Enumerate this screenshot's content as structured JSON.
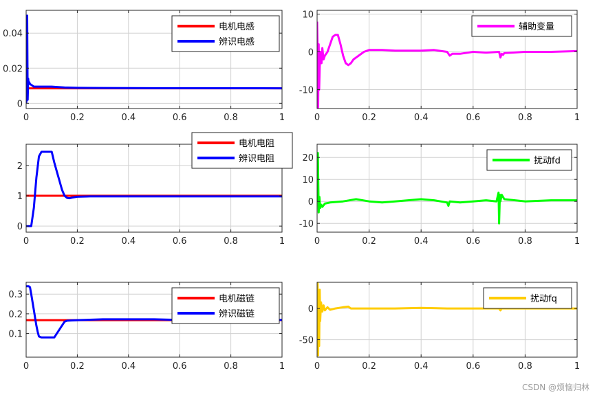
{
  "watermark": "CSDN @烦恼归林",
  "chart_data": [
    {
      "type": "line",
      "xlim": [
        0,
        1
      ],
      "ylim": [
        -0.003,
        0.053
      ],
      "xticks": [
        0,
        0.2,
        0.4,
        0.6,
        0.8,
        1
      ],
      "yticks": [
        0,
        0.02,
        0.04
      ],
      "xticklabels": [
        "0",
        "0.2",
        "0.4",
        "0.6",
        "0.8",
        "1"
      ],
      "yticklabels": [
        "0",
        "0.02",
        "0.04"
      ],
      "grid": true,
      "legend_position": "top-right",
      "series": [
        {
          "name": "电机电感",
          "color": "#ff0000",
          "x": [
            0,
            1
          ],
          "y": [
            0.0085,
            0.0085
          ]
        },
        {
          "name": "辨识电感",
          "color": "#0000ff",
          "x": [
            0,
            0.002,
            0.004,
            0.006,
            0.008,
            0.01,
            0.012,
            0.015,
            0.02,
            0.03,
            0.05,
            0.1,
            0.15,
            0.2,
            0.3,
            0.5,
            0.7,
            1
          ],
          "y": [
            0,
            0.002,
            0.05,
            0.002,
            0.014,
            0.011,
            0.012,
            0.011,
            0.0105,
            0.0095,
            0.0095,
            0.0095,
            0.009,
            0.0088,
            0.0087,
            0.0086,
            0.0086,
            0.0085
          ]
        }
      ]
    },
    {
      "type": "line",
      "xlim": [
        0,
        1
      ],
      "ylim": [
        -15,
        11
      ],
      "xticks": [
        0,
        0.2,
        0.4,
        0.6,
        0.8,
        1
      ],
      "yticks": [
        -10,
        0,
        10
      ],
      "xticklabels": [
        "0",
        "0.2",
        "0.4",
        "0.6",
        "0.8",
        "1"
      ],
      "yticklabels": [
        "-10",
        "0",
        "10"
      ],
      "grid": true,
      "legend_position": "top-right",
      "series": [
        {
          "name": "辅助变量",
          "color": "#ff00ff",
          "x": [
            0,
            0.002,
            0.004,
            0.006,
            0.008,
            0.01,
            0.013,
            0.017,
            0.02,
            0.025,
            0.03,
            0.04,
            0.05,
            0.06,
            0.07,
            0.08,
            0.09,
            0.1,
            0.11,
            0.12,
            0.13,
            0.14,
            0.16,
            0.18,
            0.2,
            0.25,
            0.3,
            0.4,
            0.45,
            0.5,
            0.51,
            0.52,
            0.55,
            0.6,
            0.65,
            0.7,
            0.705,
            0.71,
            0.715,
            0.72,
            0.75,
            0.8,
            0.9,
            1
          ],
          "y": [
            8,
            0,
            -15,
            2,
            -10,
            -4,
            0,
            -3,
            1,
            -2,
            -1,
            0,
            2,
            4,
            4.5,
            4.5,
            2,
            -1,
            -3,
            -3.5,
            -3,
            -2,
            -1,
            0,
            0.5,
            0.5,
            0.3,
            0.3,
            0.5,
            0,
            -1,
            -0.5,
            -0.5,
            0,
            -0.2,
            0,
            -1.5,
            -0.5,
            -0.8,
            -0.3,
            -0.2,
            0,
            0,
            0.2
          ]
        }
      ]
    },
    {
      "type": "line",
      "xlim": [
        0,
        1
      ],
      "ylim": [
        -0.2,
        2.7
      ],
      "xticks": [
        0,
        0.2,
        0.4,
        0.6,
        0.8,
        1
      ],
      "yticks": [
        0,
        1,
        2
      ],
      "xticklabels": [
        "0",
        "0.2",
        "0.4",
        "0.6",
        "0.8",
        "1"
      ],
      "yticklabels": [
        "0",
        "1",
        "2"
      ],
      "grid": true,
      "legend_position": "top-right",
      "series": [
        {
          "name": "电机电阻",
          "color": "#ff0000",
          "x": [
            0,
            1
          ],
          "y": [
            1,
            1
          ]
        },
        {
          "name": "辨识电阻",
          "color": "#0000ff",
          "x": [
            0,
            0.02,
            0.03,
            0.04,
            0.05,
            0.06,
            0.1,
            0.11,
            0.12,
            0.13,
            0.14,
            0.15,
            0.16,
            0.17,
            0.18,
            0.2,
            0.25,
            1
          ],
          "y": [
            0,
            0,
            0.6,
            1.6,
            2.3,
            2.45,
            2.45,
            2.1,
            1.8,
            1.5,
            1.2,
            1.0,
            0.93,
            0.92,
            0.94,
            0.97,
            0.98,
            0.98
          ]
        }
      ]
    },
    {
      "type": "line",
      "xlim": [
        0,
        1
      ],
      "ylim": [
        -14,
        26
      ],
      "xticks": [
        0,
        0.2,
        0.4,
        0.6,
        0.8,
        1
      ],
      "yticks": [
        -10,
        0,
        10,
        20
      ],
      "xticklabels": [
        "0",
        "0.2",
        "0.4",
        "0.6",
        "0.8",
        "1"
      ],
      "yticklabels": [
        "-10",
        "0",
        "10",
        "20"
      ],
      "grid": true,
      "legend_position": "top-right",
      "series": [
        {
          "name": "扰动fd",
          "color": "#00ff00",
          "x": [
            0,
            0.003,
            0.006,
            0.009,
            0.012,
            0.016,
            0.02,
            0.03,
            0.05,
            0.1,
            0.15,
            0.2,
            0.25,
            0.3,
            0.35,
            0.4,
            0.45,
            0.5,
            0.505,
            0.51,
            0.55,
            0.6,
            0.65,
            0.69,
            0.698,
            0.7,
            0.703,
            0.705,
            0.71,
            0.72,
            0.8,
            0.9,
            1
          ],
          "y": [
            0,
            22,
            -5,
            2,
            -3,
            -1.5,
            -2.5,
            -1,
            -0.5,
            0,
            1,
            0,
            -0.5,
            0,
            0.5,
            1,
            0.5,
            -0.5,
            -2,
            0,
            -0.5,
            0,
            0.5,
            0,
            4,
            -10,
            3,
            0,
            3,
            1,
            0,
            0.5,
            0.5
          ]
        }
      ]
    },
    {
      "type": "line",
      "xlim": [
        0,
        1
      ],
      "ylim": [
        -0.02,
        0.36
      ],
      "xticks": [
        0,
        0.2,
        0.4,
        0.6,
        0.8,
        1
      ],
      "yticks": [
        0.1,
        0.2,
        0.3
      ],
      "xticklabels": [
        "0",
        "0.2",
        "0.4",
        "0.6",
        "0.8",
        "1"
      ],
      "yticklabels": [
        "0.1",
        "0.2",
        "0.3"
      ],
      "grid": true,
      "legend_position": "top-right",
      "series": [
        {
          "name": "电机磁链",
          "color": "#ff0000",
          "x": [
            0,
            1
          ],
          "y": [
            0.168,
            0.168
          ]
        },
        {
          "name": "辨识磁链",
          "color": "#0000ff",
          "x": [
            0,
            0.01,
            0.015,
            0.02,
            0.025,
            0.03,
            0.035,
            0.04,
            0.045,
            0.05,
            0.06,
            0.08,
            0.11,
            0.12,
            0.14,
            0.15,
            0.16,
            0.2,
            0.3,
            0.5,
            0.6,
            1
          ],
          "y": [
            0.34,
            0.34,
            0.335,
            0.3,
            0.26,
            0.22,
            0.18,
            0.14,
            0.11,
            0.085,
            0.08,
            0.08,
            0.08,
            0.1,
            0.14,
            0.16,
            0.165,
            0.168,
            0.172,
            0.172,
            0.169,
            0.169
          ]
        }
      ]
    },
    {
      "type": "line",
      "xlim": [
        0,
        1
      ],
      "ylim": [
        -78,
        42
      ],
      "xticks": [
        0,
        0.2,
        0.4,
        0.6,
        0.8,
        1
      ],
      "yticks": [
        -50,
        0
      ],
      "xticklabels": [
        "0",
        "0.2",
        "0.4",
        "0.6",
        "0.8",
        "1"
      ],
      "yticklabels": [
        "-50",
        "0"
      ],
      "grid": true,
      "legend_position": "top-right",
      "series": [
        {
          "name": "扰动fq",
          "color": "#ffcc00",
          "x": [
            0,
            0.002,
            0.004,
            0.006,
            0.008,
            0.01,
            0.012,
            0.015,
            0.02,
            0.025,
            0.03,
            0.04,
            0.05,
            0.07,
            0.1,
            0.12,
            0.13,
            0.15,
            0.2,
            0.3,
            0.4,
            0.5,
            0.6,
            0.7,
            0.705,
            0.71,
            0.72,
            0.8,
            0.9,
            1
          ],
          "y": [
            0,
            40,
            -75,
            20,
            -60,
            30,
            -20,
            10,
            -5,
            5,
            -3,
            2,
            -2,
            0,
            2,
            3,
            0,
            0,
            0,
            0,
            1,
            0,
            0,
            0,
            -3,
            0,
            0,
            0,
            0,
            0
          ]
        }
      ]
    }
  ]
}
